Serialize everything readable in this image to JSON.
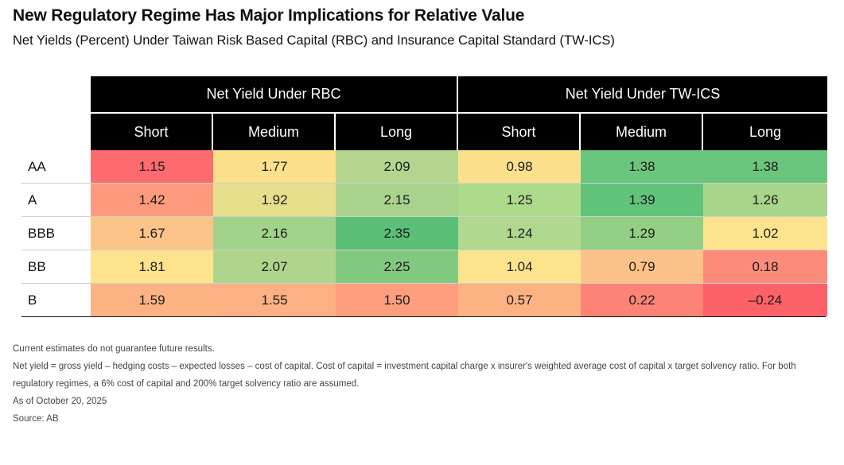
{
  "title": "New Regulatory Regime Has Major Implications for Relative Value",
  "subtitle": "Net Yields (Percent) Under Taiwan Risk Based Capital (RBC) and Insurance Capital Standard (TW-ICS)",
  "chart_data": {
    "type": "table",
    "groups": [
      {
        "name": "Net Yield Under RBC",
        "columns": [
          "Short",
          "Medium",
          "Long"
        ]
      },
      {
        "name": "Net Yield Under TW-ICS",
        "columns": [
          "Short",
          "Medium",
          "Long"
        ]
      }
    ],
    "rows": [
      {
        "label": "AA",
        "values": [
          "1.15",
          "1.77",
          "2.09",
          "0.98",
          "1.38",
          "1.38"
        ]
      },
      {
        "label": "A",
        "values": [
          "1.42",
          "1.92",
          "2.15",
          "1.25",
          "1.39",
          "1.26"
        ]
      },
      {
        "label": "BBB",
        "values": [
          "1.67",
          "2.16",
          "2.35",
          "1.24",
          "1.29",
          "1.02"
        ]
      },
      {
        "label": "BB",
        "values": [
          "1.81",
          "2.07",
          "2.25",
          "1.04",
          "0.79",
          "0.18"
        ]
      },
      {
        "label": "B",
        "values": [
          "1.59",
          "1.55",
          "1.50",
          "0.57",
          "0.22",
          "–0.24"
        ]
      }
    ],
    "colors": [
      [
        "#fd6b70",
        "#fde08c",
        "#b3d58f",
        "#fde08c",
        "#6bc67d",
        "#6bc67d"
      ],
      [
        "#fd9a7d",
        "#e6e08d",
        "#a9d38c",
        "#addb8c",
        "#62c37b",
        "#a8d58b"
      ],
      [
        "#fdc489",
        "#a1d48a",
        "#5bbf77",
        "#b0d88e",
        "#92cf84",
        "#fde48c"
      ],
      [
        "#fde38b",
        "#afd58d",
        "#82c980",
        "#fde48c",
        "#fdc289",
        "#fd8b79"
      ],
      [
        "#fdb283",
        "#fdb083",
        "#fd9e7f",
        "#fdb283",
        "#fd8377",
        "#fd6168"
      ]
    ]
  },
  "notes": [
    "Current estimates do not guarantee future results.",
    "Net yield = gross yield – hedging costs – expected losses – cost of capital. Cost of capital = investment capital charge x insurer's weighted average cost of capital x target solvency ratio. For both regulatory regimes, a 6% cost of capital and 200% target solvency ratio are assumed.",
    "As of October 20, 2025",
    "Source: AB"
  ]
}
